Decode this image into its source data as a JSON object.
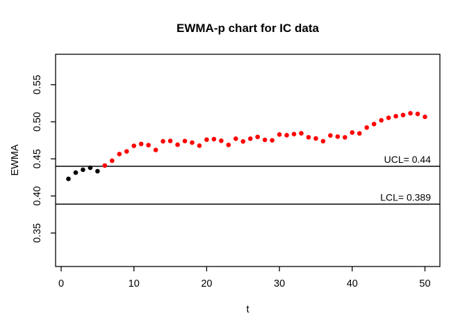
{
  "chart_data": {
    "type": "scatter",
    "title": "EWMA-p chart for IC data",
    "xlabel": "t",
    "ylabel": "EWMA",
    "x_ticks": [
      0,
      10,
      20,
      30,
      40,
      50
    ],
    "x_tick_labels": [
      "0",
      "10",
      "20",
      "30",
      "40",
      "50"
    ],
    "y_ticks": [
      0.35,
      0.4,
      0.45,
      0.5,
      0.55
    ],
    "y_tick_labels": [
      "0.35",
      "0.40",
      "0.45",
      "0.50",
      "0.55"
    ],
    "xlim": [
      -1,
      52
    ],
    "ylim": [
      0.305,
      0.59
    ],
    "grid": false,
    "ucl": {
      "value": 0.44,
      "label": "UCL= 0.44"
    },
    "lcl": {
      "value": 0.389,
      "label": "LCL= 0.389"
    },
    "x": [
      1,
      2,
      3,
      4,
      5,
      6,
      7,
      8,
      9,
      10,
      11,
      12,
      13,
      14,
      15,
      16,
      17,
      18,
      19,
      20,
      21,
      22,
      23,
      24,
      25,
      26,
      27,
      28,
      29,
      30,
      31,
      32,
      33,
      34,
      35,
      36,
      37,
      38,
      39,
      40,
      41,
      42,
      43,
      44,
      45,
      46,
      47,
      48,
      49,
      50
    ],
    "values": [
      0.423,
      0.4315,
      0.4353,
      0.438,
      0.4334,
      0.441,
      0.4475,
      0.4565,
      0.46,
      0.4676,
      0.4701,
      0.4685,
      0.462,
      0.4737,
      0.4742,
      0.4691,
      0.474,
      0.4719,
      0.4678,
      0.4759,
      0.4766,
      0.4744,
      0.4688,
      0.4772,
      0.4735,
      0.4772,
      0.4796,
      0.4756,
      0.475,
      0.4828,
      0.4819,
      0.4834,
      0.4845,
      0.4791,
      0.4775,
      0.4738,
      0.4815,
      0.48,
      0.479,
      0.4855,
      0.4843,
      0.4922,
      0.4969,
      0.502,
      0.5053,
      0.5075,
      0.5091,
      0.5115,
      0.5106,
      0.5066
    ],
    "in_control_point_count": 5,
    "colors": {
      "in_control_point": "#000000",
      "out_of_control_point": "#ff0000",
      "limit_line": "#000000",
      "axis": "#000000",
      "background": "#ffffff"
    }
  }
}
